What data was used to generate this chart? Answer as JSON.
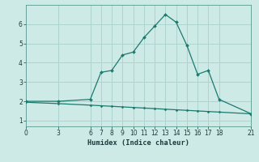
{
  "xlabel": "Humidex (Indice chaleur)",
  "bg_color": "#ceeae7",
  "line_color": "#1a7a6e",
  "grid_color": "#aed4d0",
  "upper_x": [
    0,
    3,
    6,
    7,
    8,
    9,
    10,
    11,
    12,
    13,
    14,
    15,
    16,
    17,
    18,
    21
  ],
  "upper_y": [
    2.0,
    2.0,
    2.1,
    3.5,
    3.6,
    4.4,
    4.55,
    5.3,
    5.9,
    6.5,
    6.1,
    4.9,
    3.4,
    3.6,
    2.1,
    1.35
  ],
  "lower_x": [
    0,
    3,
    6,
    7,
    8,
    9,
    10,
    11,
    12,
    13,
    14,
    15,
    16,
    17,
    18,
    21
  ],
  "lower_y": [
    1.95,
    1.88,
    1.8,
    1.77,
    1.74,
    1.71,
    1.68,
    1.65,
    1.62,
    1.59,
    1.56,
    1.53,
    1.5,
    1.47,
    1.44,
    1.35
  ],
  "xticks": [
    0,
    3,
    6,
    7,
    8,
    9,
    10,
    11,
    12,
    13,
    14,
    15,
    16,
    17,
    18,
    21
  ],
  "yticks": [
    1,
    2,
    3,
    4,
    5,
    6
  ],
  "ylim": [
    0.7,
    7.0
  ],
  "xlim": [
    0,
    21
  ]
}
